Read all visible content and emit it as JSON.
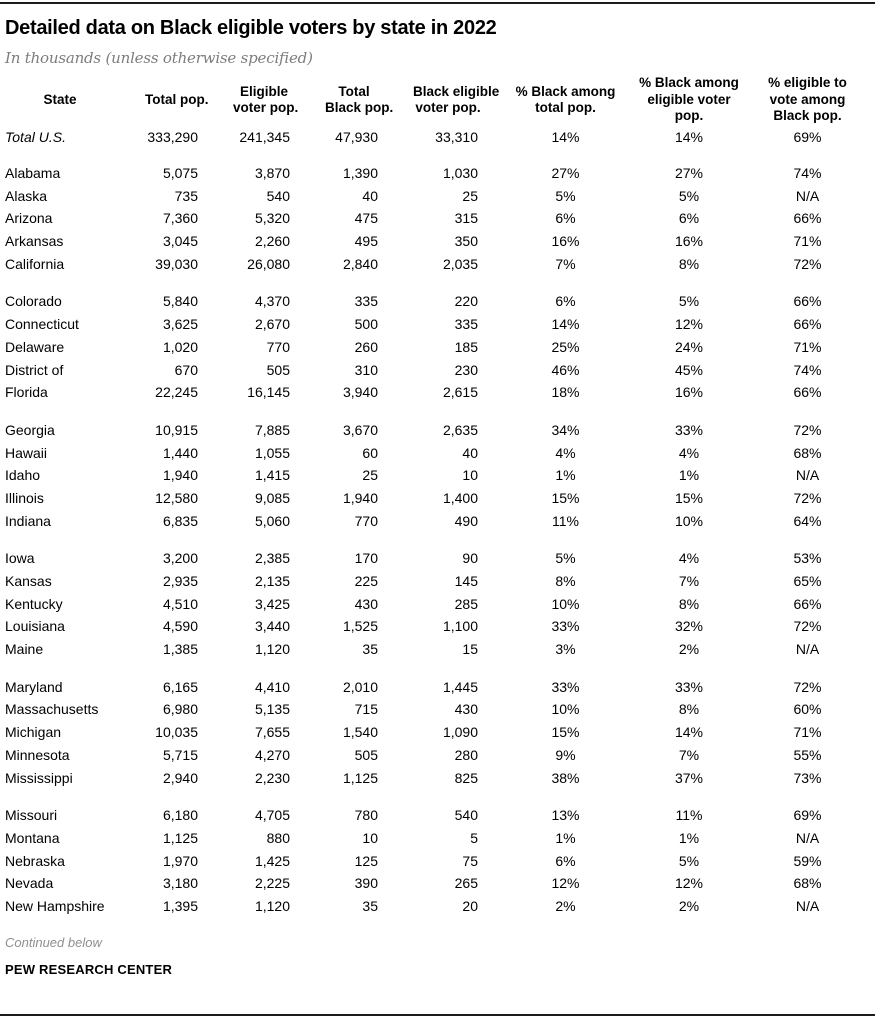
{
  "chart_data": {
    "type": "table",
    "title": "Detailed data on Black eligible voters by state in 2022",
    "subtitle": "In thousands (unless otherwise specified)",
    "units": "thousands unless otherwise specified",
    "columns": [
      "State",
      "Total pop.",
      "Eligible\nvoter pop.",
      "Total\nBlack pop.",
      "Black eligible\nvoter pop.",
      "% Black among\ntotal pop.",
      "% Black among\neligible voter\npop.",
      "% eligible to\nvote among\nBlack pop."
    ],
    "rows": [
      [
        "Total U.S.",
        "333,290",
        "241,345",
        "47,930",
        "33,310",
        "14%",
        "14%",
        "69%"
      ],
      [
        "Alabama",
        "5,075",
        "3,870",
        "1,390",
        "1,030",
        "27%",
        "27%",
        "74%"
      ],
      [
        "Alaska",
        "735",
        "540",
        "40",
        "25",
        "5%",
        "5%",
        "N/A"
      ],
      [
        "Arizona",
        "7,360",
        "5,320",
        "475",
        "315",
        "6%",
        "6%",
        "66%"
      ],
      [
        "Arkansas",
        "3,045",
        "2,260",
        "495",
        "350",
        "16%",
        "16%",
        "71%"
      ],
      [
        "California",
        "39,030",
        "26,080",
        "2,840",
        "2,035",
        "7%",
        "8%",
        "72%"
      ],
      [
        "Colorado",
        "5,840",
        "4,370",
        "335",
        "220",
        "6%",
        "5%",
        "66%"
      ],
      [
        "Connecticut",
        "3,625",
        "2,670",
        "500",
        "335",
        "14%",
        "12%",
        "66%"
      ],
      [
        "Delaware",
        "1,020",
        "770",
        "260",
        "185",
        "25%",
        "24%",
        "71%"
      ],
      [
        "District of",
        "670",
        "505",
        "310",
        "230",
        "46%",
        "45%",
        "74%"
      ],
      [
        "Florida",
        "22,245",
        "16,145",
        "3,940",
        "2,615",
        "18%",
        "16%",
        "66%"
      ],
      [
        "Georgia",
        "10,915",
        "7,885",
        "3,670",
        "2,635",
        "34%",
        "33%",
        "72%"
      ],
      [
        "Hawaii",
        "1,440",
        "1,055",
        "60",
        "40",
        "4%",
        "4%",
        "68%"
      ],
      [
        "Idaho",
        "1,940",
        "1,415",
        "25",
        "10",
        "1%",
        "1%",
        "N/A"
      ],
      [
        "Illinois",
        "12,580",
        "9,085",
        "1,940",
        "1,400",
        "15%",
        "15%",
        "72%"
      ],
      [
        "Indiana",
        "6,835",
        "5,060",
        "770",
        "490",
        "11%",
        "10%",
        "64%"
      ],
      [
        "Iowa",
        "3,200",
        "2,385",
        "170",
        "90",
        "5%",
        "4%",
        "53%"
      ],
      [
        "Kansas",
        "2,935",
        "2,135",
        "225",
        "145",
        "8%",
        "7%",
        "65%"
      ],
      [
        "Kentucky",
        "4,510",
        "3,425",
        "430",
        "285",
        "10%",
        "8%",
        "66%"
      ],
      [
        "Louisiana",
        "4,590",
        "3,440",
        "1,525",
        "1,100",
        "33%",
        "32%",
        "72%"
      ],
      [
        "Maine",
        "1,385",
        "1,120",
        "35",
        "15",
        "3%",
        "2%",
        "N/A"
      ],
      [
        "Maryland",
        "6,165",
        "4,410",
        "2,010",
        "1,445",
        "33%",
        "33%",
        "72%"
      ],
      [
        "Massachusetts",
        "6,980",
        "5,135",
        "715",
        "430",
        "10%",
        "8%",
        "60%"
      ],
      [
        "Michigan",
        "10,035",
        "7,655",
        "1,540",
        "1,090",
        "15%",
        "14%",
        "71%"
      ],
      [
        "Minnesota",
        "5,715",
        "4,270",
        "505",
        "280",
        "9%",
        "7%",
        "55%"
      ],
      [
        "Mississippi",
        "2,940",
        "2,230",
        "1,125",
        "825",
        "38%",
        "37%",
        "73%"
      ],
      [
        "Missouri",
        "6,180",
        "4,705",
        "780",
        "540",
        "13%",
        "11%",
        "69%"
      ],
      [
        "Montana",
        "1,125",
        "880",
        "10",
        "5",
        "1%",
        "1%",
        "N/A"
      ],
      [
        "Nebraska",
        "1,970",
        "1,425",
        "125",
        "75",
        "6%",
        "5%",
        "59%"
      ],
      [
        "Nevada",
        "3,180",
        "2,225",
        "390",
        "265",
        "12%",
        "12%",
        "68%"
      ],
      [
        "New Hampshire",
        "1,395",
        "1,120",
        "35",
        "20",
        "2%",
        "2%",
        "N/A"
      ]
    ],
    "layout": {
      "rows_per_group": 5,
      "first_row_is_total": true,
      "grid": "off",
      "value_alignment": "numbers right, percents center"
    }
  },
  "footer": {
    "continued": "Continued below",
    "source": "PEW RESEARCH CENTER"
  },
  "colors": {
    "text": "#000000",
    "muted": "#8f8f8f",
    "rule": "#1c1c1c",
    "background": "#ffffff"
  }
}
